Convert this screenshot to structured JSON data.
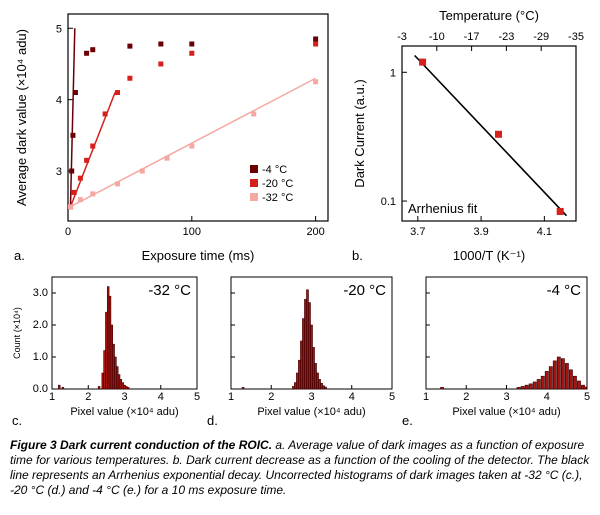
{
  "figure_label": "Figure 3 Dark current conduction of the ROIC.",
  "caption_parts": {
    "a": "a. Average value of dark images as a function of exposure time for various temperatures.",
    "b": "b. Dark current decrease as a function of the cooling of the detector. The black line represents an Arrhenius exponential decay.",
    "cde": "Uncorrected histograms of dark images taken at -32 °C (c.), -20 °C (d.) and -4 °C (e.) for a 10 ms exposure time."
  },
  "colors": {
    "background": "#ffffff",
    "axis": "#000000",
    "grid": "#e0e0e0",
    "series_m4": "#6a0005",
    "series_m20": "#d6201c",
    "series_m32": "#f5a8a2",
    "hist_edge": "#3a0003",
    "hist_fill": "#a8130f",
    "fit_line": "#000000"
  },
  "panel_a": {
    "type": "scatter+line",
    "title": "",
    "xlabel": "Exposure time (ms)",
    "ylabel": "Average dark value (×10⁴ adu)",
    "xlim": [
      0,
      210
    ],
    "ylim": [
      2.3,
      5.2
    ],
    "xticks": [
      0,
      100,
      200
    ],
    "yticks": [
      3,
      4,
      5
    ],
    "legend_pos": "lower-right",
    "legend": [
      {
        "label": "-4 °C",
        "color": "#6a0005"
      },
      {
        "label": "-20 °C",
        "color": "#d6201c"
      },
      {
        "label": "-32 °C",
        "color": "#f5a8a2"
      }
    ],
    "series": [
      {
        "name": "-4 °C",
        "color": "#6a0005",
        "marker": "square",
        "size": 5,
        "points": [
          [
            2,
            2.5
          ],
          [
            3,
            3.0
          ],
          [
            4,
            3.5
          ],
          [
            6,
            4.1
          ],
          [
            15,
            4.65
          ],
          [
            20,
            4.7
          ],
          [
            50,
            4.75
          ],
          [
            75,
            4.78
          ],
          [
            100,
            4.78
          ],
          [
            200,
            4.85
          ]
        ],
        "fit_line": [
          [
            2,
            2.5
          ],
          [
            5.5,
            5.0
          ]
        ]
      },
      {
        "name": "-20 °C",
        "color": "#d6201c",
        "marker": "square",
        "size": 5,
        "points": [
          [
            2,
            2.5
          ],
          [
            5,
            2.7
          ],
          [
            10,
            2.9
          ],
          [
            15,
            3.15
          ],
          [
            20,
            3.35
          ],
          [
            30,
            3.8
          ],
          [
            40,
            4.1
          ],
          [
            50,
            4.3
          ],
          [
            75,
            4.5
          ],
          [
            100,
            4.65
          ],
          [
            200,
            4.78
          ]
        ],
        "fit_line": [
          [
            2,
            2.5
          ],
          [
            38,
            4.1
          ]
        ]
      },
      {
        "name": "-32 °C",
        "color": "#f5a8a2",
        "marker": "square",
        "size": 5,
        "points": [
          [
            2,
            2.5
          ],
          [
            10,
            2.6
          ],
          [
            20,
            2.68
          ],
          [
            40,
            2.82
          ],
          [
            60,
            3.0
          ],
          [
            80,
            3.18
          ],
          [
            100,
            3.35
          ],
          [
            150,
            3.8
          ],
          [
            200,
            4.25
          ]
        ],
        "fit_line": [
          [
            2,
            2.5
          ],
          [
            200,
            4.3
          ]
        ]
      }
    ]
  },
  "panel_b": {
    "type": "line+scatter",
    "xlabel": "1000/T (K⁻¹)",
    "top_xlabel": "Temperature (°C)",
    "ylabel": "Dark Current (a.u.)",
    "annotation": "Arrhenius fit",
    "xlim": [
      3.65,
      4.2
    ],
    "ylim_log": [
      0.07,
      1.6
    ],
    "xticks": [
      3.7,
      3.9,
      4.1
    ],
    "top_xticks": [
      "-3",
      "-10",
      "-17",
      "-23",
      "-29",
      "-35"
    ],
    "yticks": [
      0.1,
      1
    ],
    "points": [
      [
        3.715,
        1.2
      ],
      [
        3.955,
        0.33
      ],
      [
        4.15,
        0.083
      ]
    ],
    "point_color": "#d6201c",
    "fit_line": [
      [
        3.69,
        1.35
      ],
      [
        4.17,
        0.077
      ]
    ],
    "fit_color": "#000000"
  },
  "panel_c": {
    "type": "histogram",
    "title": "-32 °C",
    "xlabel": "Pixel value (×10⁴ adu)",
    "ylabel": "Count  (×10⁴)",
    "xlim": [
      1,
      5
    ],
    "ylim": [
      0,
      3.5
    ],
    "xticks": [
      1,
      2,
      3,
      4,
      5
    ],
    "yticks": [
      0,
      1.0,
      2.0,
      3.0
    ],
    "bars": [
      [
        1.2,
        0.12
      ],
      [
        1.3,
        0.05
      ],
      [
        2.3,
        0.08
      ],
      [
        2.4,
        0.5
      ],
      [
        2.45,
        1.2
      ],
      [
        2.5,
        2.4
      ],
      [
        2.55,
        3.2
      ],
      [
        2.6,
        2.9
      ],
      [
        2.65,
        2.0
      ],
      [
        2.7,
        1.4
      ],
      [
        2.75,
        1.0
      ],
      [
        2.8,
        0.7
      ],
      [
        2.85,
        0.45
      ],
      [
        2.9,
        0.3
      ],
      [
        2.95,
        0.2
      ],
      [
        3.0,
        0.12
      ],
      [
        3.05,
        0.08
      ],
      [
        3.1,
        0.05
      ]
    ],
    "bar_w": 0.05
  },
  "panel_d": {
    "type": "histogram",
    "title": "-20 °C",
    "xlabel": "Pixel value (×10⁴ adu)",
    "xlim": [
      1,
      5
    ],
    "ylim": [
      0,
      3.5
    ],
    "xticks": [
      1,
      2,
      3,
      4,
      5
    ],
    "yticks": [
      0,
      1.0,
      2.0,
      3.0
    ],
    "bars": [
      [
        1.3,
        0.05
      ],
      [
        2.55,
        0.08
      ],
      [
        2.6,
        0.2
      ],
      [
        2.65,
        0.5
      ],
      [
        2.7,
        0.9
      ],
      [
        2.75,
        1.5
      ],
      [
        2.8,
        2.2
      ],
      [
        2.85,
        2.8
      ],
      [
        2.9,
        3.1
      ],
      [
        2.95,
        2.7
      ],
      [
        3.0,
        2.0
      ],
      [
        3.05,
        1.3
      ],
      [
        3.1,
        0.8
      ],
      [
        3.15,
        0.5
      ],
      [
        3.2,
        0.3
      ],
      [
        3.25,
        0.18
      ],
      [
        3.3,
        0.1
      ],
      [
        3.35,
        0.06
      ]
    ],
    "bar_w": 0.05
  },
  "panel_e": {
    "type": "histogram",
    "title": "-4 °C",
    "xlabel": "Pixel value (×10⁴ adu)",
    "xlim": [
      1,
      5
    ],
    "ylim": [
      0,
      3.5
    ],
    "xticks": [
      1,
      2,
      3,
      4,
      5
    ],
    "yticks": [
      0,
      1.0,
      2.0,
      3.0
    ],
    "bars": [
      [
        1.4,
        0.05
      ],
      [
        3.3,
        0.05
      ],
      [
        3.4,
        0.08
      ],
      [
        3.5,
        0.12
      ],
      [
        3.6,
        0.16
      ],
      [
        3.7,
        0.22
      ],
      [
        3.8,
        0.3
      ],
      [
        3.9,
        0.4
      ],
      [
        4.0,
        0.55
      ],
      [
        4.1,
        0.7
      ],
      [
        4.2,
        0.88
      ],
      [
        4.3,
        1.0
      ],
      [
        4.4,
        0.95
      ],
      [
        4.5,
        0.8
      ],
      [
        4.6,
        0.6
      ],
      [
        4.7,
        0.4
      ],
      [
        4.8,
        0.25
      ],
      [
        4.9,
        0.12
      ],
      [
        4.95,
        0.06
      ]
    ],
    "bar_w": 0.08
  }
}
